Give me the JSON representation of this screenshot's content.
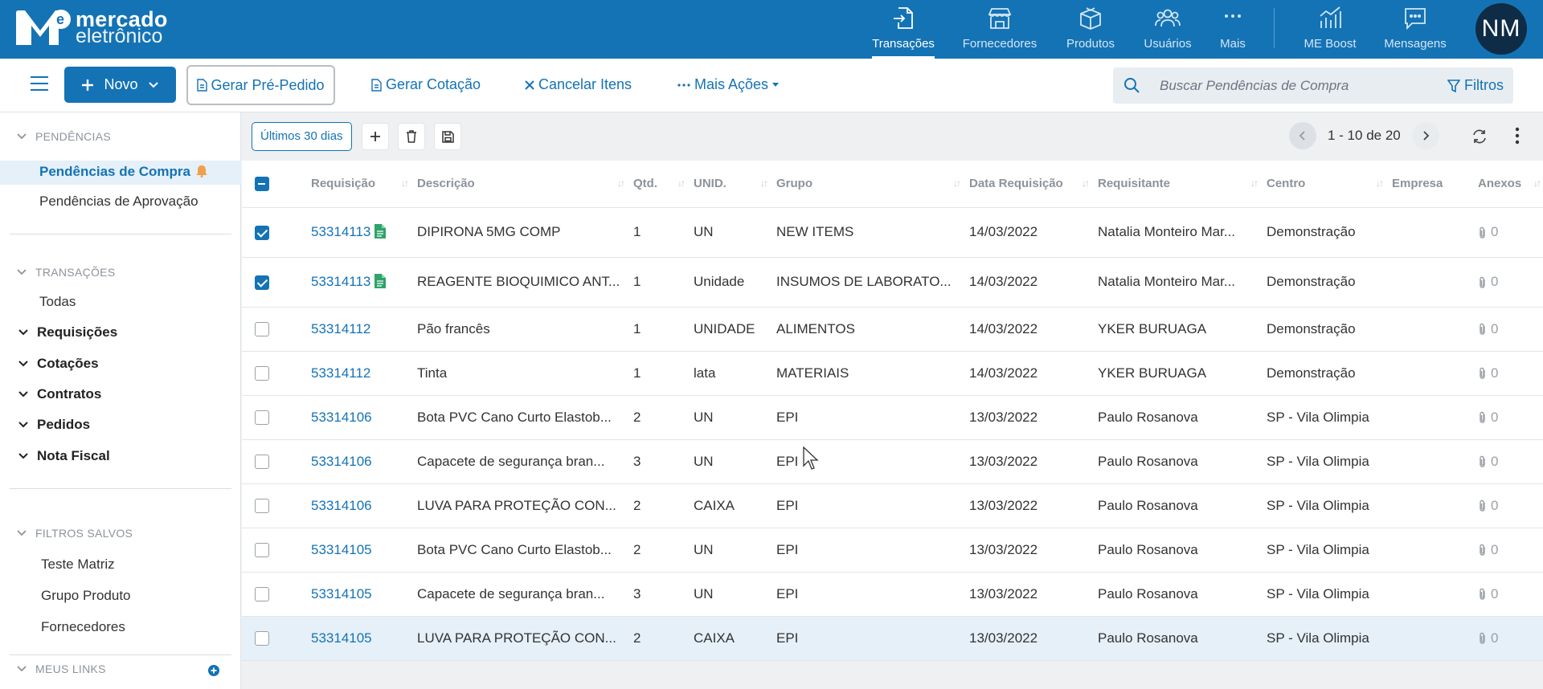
{
  "brand": {
    "line1": "mercado",
    "line2": "eletrônico"
  },
  "nav": [
    {
      "label": "Transações",
      "icon": "transactions-icon"
    },
    {
      "label": "Fornecedores",
      "icon": "store-icon"
    },
    {
      "label": "Produtos",
      "icon": "box-icon"
    },
    {
      "label": "Usuários",
      "icon": "users-icon"
    },
    {
      "label": "Mais",
      "icon": "more-dots-icon"
    },
    {
      "label": "ME Boost",
      "icon": "chart-icon"
    },
    {
      "label": "Mensagens",
      "icon": "message-icon"
    }
  ],
  "user": {
    "initials": "NM"
  },
  "toolbar": {
    "novo": "Novo",
    "gerar_pre_pedido": "Gerar Pré-Pedido",
    "gerar_cotacao": "Gerar Cotação",
    "cancelar_itens": "Cancelar Itens",
    "mais_acoes": "Mais Ações",
    "search_placeholder": "Buscar Pendências de Compra",
    "filtros": "Filtros"
  },
  "sidebar": {
    "pendencias_title": "PENDÊNCIAS",
    "pendencias": [
      "Pendências de Compra",
      "Pendências de Aprovação"
    ],
    "transacoes_title": "TRANSAÇÕES",
    "todas": "Todas",
    "groups": [
      "Requisições",
      "Cotações",
      "Contratos",
      "Pedidos",
      "Nota Fiscal"
    ],
    "filtros_title": "FILTROS SALVOS",
    "filtros": [
      "Teste Matriz",
      "Grupo Produto",
      "Fornecedores"
    ],
    "links_title": "MEUS LINKS"
  },
  "controls": {
    "period": "Últimos 30 dias",
    "pagination": "1 - 10 de 20"
  },
  "table": {
    "columns": [
      "Requisição",
      "Descrição",
      "Qtd.",
      "UNID.",
      "Grupo",
      "Data Requisição",
      "Requisitante",
      "Centro",
      "Empresa",
      "Anexos"
    ],
    "rows": [
      {
        "req": "53314113",
        "desc": "DIPIRONA 5MG COMP",
        "qtd": "1",
        "unid": "UN",
        "grupo": "NEW ITEMS",
        "data": "14/03/2022",
        "requisitante": "Natalia Monteiro Mar...",
        "centro": "Demonstração",
        "empresa": "",
        "anexos": "0",
        "checked": true,
        "doc": true
      },
      {
        "req": "53314113",
        "desc": "REAGENTE BIOQUIMICO ANT...",
        "qtd": "1",
        "unid": "Unidade",
        "grupo": "INSUMOS DE LABORATO...",
        "data": "14/03/2022",
        "requisitante": "Natalia Monteiro Mar...",
        "centro": "Demonstração",
        "empresa": "",
        "anexos": "0",
        "checked": true,
        "doc": true
      },
      {
        "req": "53314112",
        "desc": "Pão francês",
        "qtd": "1",
        "unid": "UNIDADE",
        "grupo": "ALIMENTOS",
        "data": "14/03/2022",
        "requisitante": "YKER BURUAGA",
        "centro": "Demonstração",
        "empresa": "",
        "anexos": "0",
        "checked": false,
        "doc": false
      },
      {
        "req": "53314112",
        "desc": "Tinta",
        "qtd": "1",
        "unid": "lata",
        "grupo": "MATERIAIS",
        "data": "14/03/2022",
        "requisitante": "YKER BURUAGA",
        "centro": "Demonstração",
        "empresa": "",
        "anexos": "0",
        "checked": false,
        "doc": false
      },
      {
        "req": "53314106",
        "desc": "Bota PVC Cano Curto Elastob...",
        "qtd": "2",
        "unid": "UN",
        "grupo": "EPI",
        "data": "13/03/2022",
        "requisitante": "Paulo Rosanova",
        "centro": "SP - Vila Olimpia",
        "empresa": "",
        "anexos": "0",
        "checked": false,
        "doc": false
      },
      {
        "req": "53314106",
        "desc": "Capacete de segurança bran...",
        "qtd": "3",
        "unid": "UN",
        "grupo": "EPI",
        "data": "13/03/2022",
        "requisitante": "Paulo Rosanova",
        "centro": "SP - Vila Olimpia",
        "empresa": "",
        "anexos": "0",
        "checked": false,
        "doc": false
      },
      {
        "req": "53314106",
        "desc": "LUVA PARA PROTEÇÃO CON...",
        "qtd": "2",
        "unid": "CAIXA",
        "grupo": "EPI",
        "data": "13/03/2022",
        "requisitante": "Paulo Rosanova",
        "centro": "SP - Vila Olimpia",
        "empresa": "",
        "anexos": "0",
        "checked": false,
        "doc": false
      },
      {
        "req": "53314105",
        "desc": "Bota PVC Cano Curto Elastob...",
        "qtd": "2",
        "unid": "UN",
        "grupo": "EPI",
        "data": "13/03/2022",
        "requisitante": "Paulo Rosanova",
        "centro": "SP - Vila Olimpia",
        "empresa": "",
        "anexos": "0",
        "checked": false,
        "doc": false
      },
      {
        "req": "53314105",
        "desc": "Capacete de segurança bran...",
        "qtd": "3",
        "unid": "UN",
        "grupo": "EPI",
        "data": "13/03/2022",
        "requisitante": "Paulo Rosanova",
        "centro": "SP - Vila Olimpia",
        "empresa": "",
        "anexos": "0",
        "checked": false,
        "doc": false
      },
      {
        "req": "53314105",
        "desc": "LUVA PARA PROTEÇÃO CON...",
        "qtd": "2",
        "unid": "CAIXA",
        "grupo": "EPI",
        "data": "13/03/2022",
        "requisitante": "Paulo Rosanova",
        "centro": "SP - Vila Olimpia",
        "empresa": "",
        "anexos": "0",
        "checked": false,
        "doc": false
      }
    ]
  },
  "colors": {
    "primary": "#1473b5",
    "nav_dark": "#0e2c46",
    "doc_green": "#2ea36a",
    "bell": "#f0a04b",
    "highlight": "#e6f0f8"
  }
}
